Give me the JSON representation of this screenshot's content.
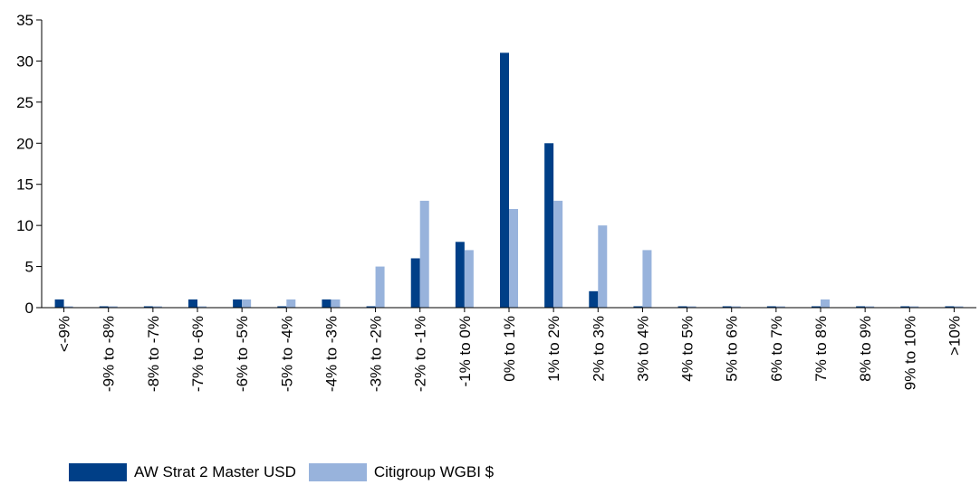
{
  "chart_data": {
    "type": "bar",
    "title": "",
    "xlabel": "",
    "ylabel": "",
    "ylim": [
      0,
      35
    ],
    "yticks": [
      0,
      5,
      10,
      15,
      20,
      25,
      30,
      35
    ],
    "grid": false,
    "legend_position": "bottom-left",
    "categories": [
      "<-9%",
      "-9% to -8%",
      "-8% to -7%",
      "-7% to -6%",
      "-6% to -5%",
      "-5% to -4%",
      "-4% to -3%",
      "-3% to -2%",
      "-2% to -1%",
      "-1% to 0%",
      "0% to 1%",
      "1% to 2%",
      "2% to 3%",
      "3% to 4%",
      "4% to 5%",
      "5% to 6%",
      "6% to 7%",
      "7% to 8%",
      "8% to 9%",
      "9% to 10%",
      ">10%"
    ],
    "series": [
      {
        "name": "AW Strat 2 Master USD",
        "color": "#003f87",
        "values": [
          1,
          0,
          0,
          1,
          1,
          0,
          1,
          0,
          6,
          8,
          31,
          20,
          2,
          0,
          0,
          0,
          0,
          0,
          0,
          0,
          0
        ]
      },
      {
        "name": "Citigroup WGBI $",
        "color": "#98b3dc",
        "values": [
          0,
          0,
          0,
          0,
          1,
          1,
          1,
          5,
          13,
          7,
          12,
          13,
          10,
          7,
          0,
          0,
          0,
          1,
          0,
          0,
          0
        ]
      }
    ]
  }
}
